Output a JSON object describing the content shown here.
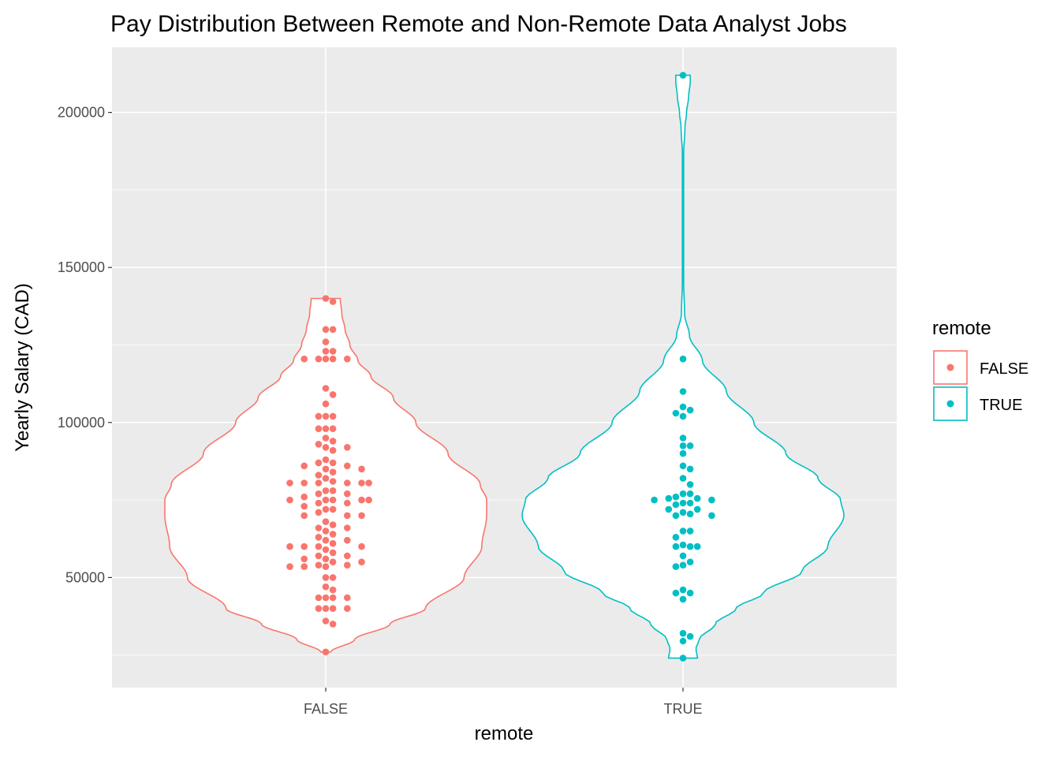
{
  "chart_data": {
    "type": "violin",
    "title": "Pay Distribution Between Remote and Non-Remote Data Analyst Jobs",
    "xlabel": "remote",
    "ylabel": "Yearly Salary (CAD)",
    "ylim": [
      14500,
      221000
    ],
    "yticks": [
      50000,
      100000,
      150000,
      200000
    ],
    "ytick_labels": [
      "50000",
      "100000",
      "150000",
      "200000"
    ],
    "categories": [
      "FALSE",
      "TRUE"
    ],
    "grid": true,
    "legend": {
      "title": "remote",
      "position": "right",
      "entries": [
        "FALSE",
        "TRUE"
      ]
    },
    "series": [
      {
        "name": "FALSE",
        "color": "#F8766D",
        "violin_min": 26000,
        "violin_max": 140000,
        "density": [
          [
            26000,
            0.03
          ],
          [
            30000,
            0.18
          ],
          [
            35000,
            0.4
          ],
          [
            40000,
            0.62
          ],
          [
            50000,
            0.86
          ],
          [
            60000,
            0.97
          ],
          [
            70000,
            1.0
          ],
          [
            75000,
            1.0
          ],
          [
            80000,
            0.96
          ],
          [
            90000,
            0.76
          ],
          [
            100000,
            0.56
          ],
          [
            108000,
            0.42
          ],
          [
            115000,
            0.28
          ],
          [
            120000,
            0.2
          ],
          [
            125000,
            0.15
          ],
          [
            130000,
            0.12
          ],
          [
            135000,
            0.1
          ],
          [
            140000,
            0.09
          ]
        ],
        "values": [
          140000,
          139000,
          130000,
          130000,
          126000,
          123000,
          123000,
          120500,
          120500,
          120500,
          120500,
          120500,
          111000,
          109000,
          106000,
          102000,
          102000,
          102000,
          98000,
          98000,
          98000,
          95000,
          94000,
          93000,
          92000,
          92000,
          91000,
          88000,
          87000,
          87000,
          86000,
          86000,
          85000,
          85000,
          84000,
          83000,
          82000,
          81000,
          80500,
          80500,
          80500,
          80500,
          80500,
          80500,
          78000,
          78000,
          77000,
          77000,
          76000,
          75000,
          75000,
          75000,
          75000,
          75000,
          74000,
          74000,
          73000,
          72000,
          72000,
          71000,
          70000,
          70000,
          70000,
          68000,
          67000,
          66000,
          66000,
          65000,
          64000,
          63000,
          62000,
          62000,
          61000,
          60000,
          60000,
          60000,
          60000,
          59000,
          58000,
          57000,
          57000,
          56000,
          56000,
          55000,
          55000,
          54000,
          54000,
          53500,
          53500,
          53500,
          50000,
          50000,
          47000,
          46000,
          43500,
          43500,
          43500,
          43500,
          40000,
          40000,
          40000,
          40000,
          36000,
          35000,
          26000
        ]
      },
      {
        "name": "TRUE",
        "color": "#00BFC4",
        "violin_min": 24000,
        "violin_max": 212000,
        "density": [
          [
            24000,
            0.09
          ],
          [
            27000,
            0.08
          ],
          [
            30000,
            0.1
          ],
          [
            35000,
            0.2
          ],
          [
            40000,
            0.33
          ],
          [
            45000,
            0.5
          ],
          [
            52000,
            0.74
          ],
          [
            60000,
            0.9
          ],
          [
            70000,
            1.0
          ],
          [
            75000,
            0.98
          ],
          [
            82000,
            0.84
          ],
          [
            90000,
            0.64
          ],
          [
            100000,
            0.44
          ],
          [
            110000,
            0.27
          ],
          [
            120000,
            0.12
          ],
          [
            128000,
            0.04
          ],
          [
            135000,
            0.01
          ],
          [
            145000,
            0.004
          ],
          [
            160000,
            0.002
          ],
          [
            185000,
            0.002
          ],
          [
            195000,
            0.012
          ],
          [
            200000,
            0.022
          ],
          [
            205000,
            0.035
          ],
          [
            210000,
            0.045
          ],
          [
            212000,
            0.045
          ]
        ],
        "values": [
          212000,
          120500,
          110000,
          105000,
          104000,
          103000,
          102000,
          95000,
          92500,
          92500,
          90000,
          86000,
          85000,
          82000,
          80000,
          77000,
          77000,
          76000,
          75500,
          75500,
          75000,
          75000,
          74000,
          74000,
          73500,
          72000,
          72000,
          71000,
          70500,
          70000,
          70000,
          65000,
          65000,
          63000,
          60500,
          60000,
          60000,
          60000,
          57000,
          55000,
          54000,
          53500,
          46000,
          45000,
          45000,
          43000,
          32000,
          31000,
          29500,
          24000
        ]
      }
    ]
  }
}
